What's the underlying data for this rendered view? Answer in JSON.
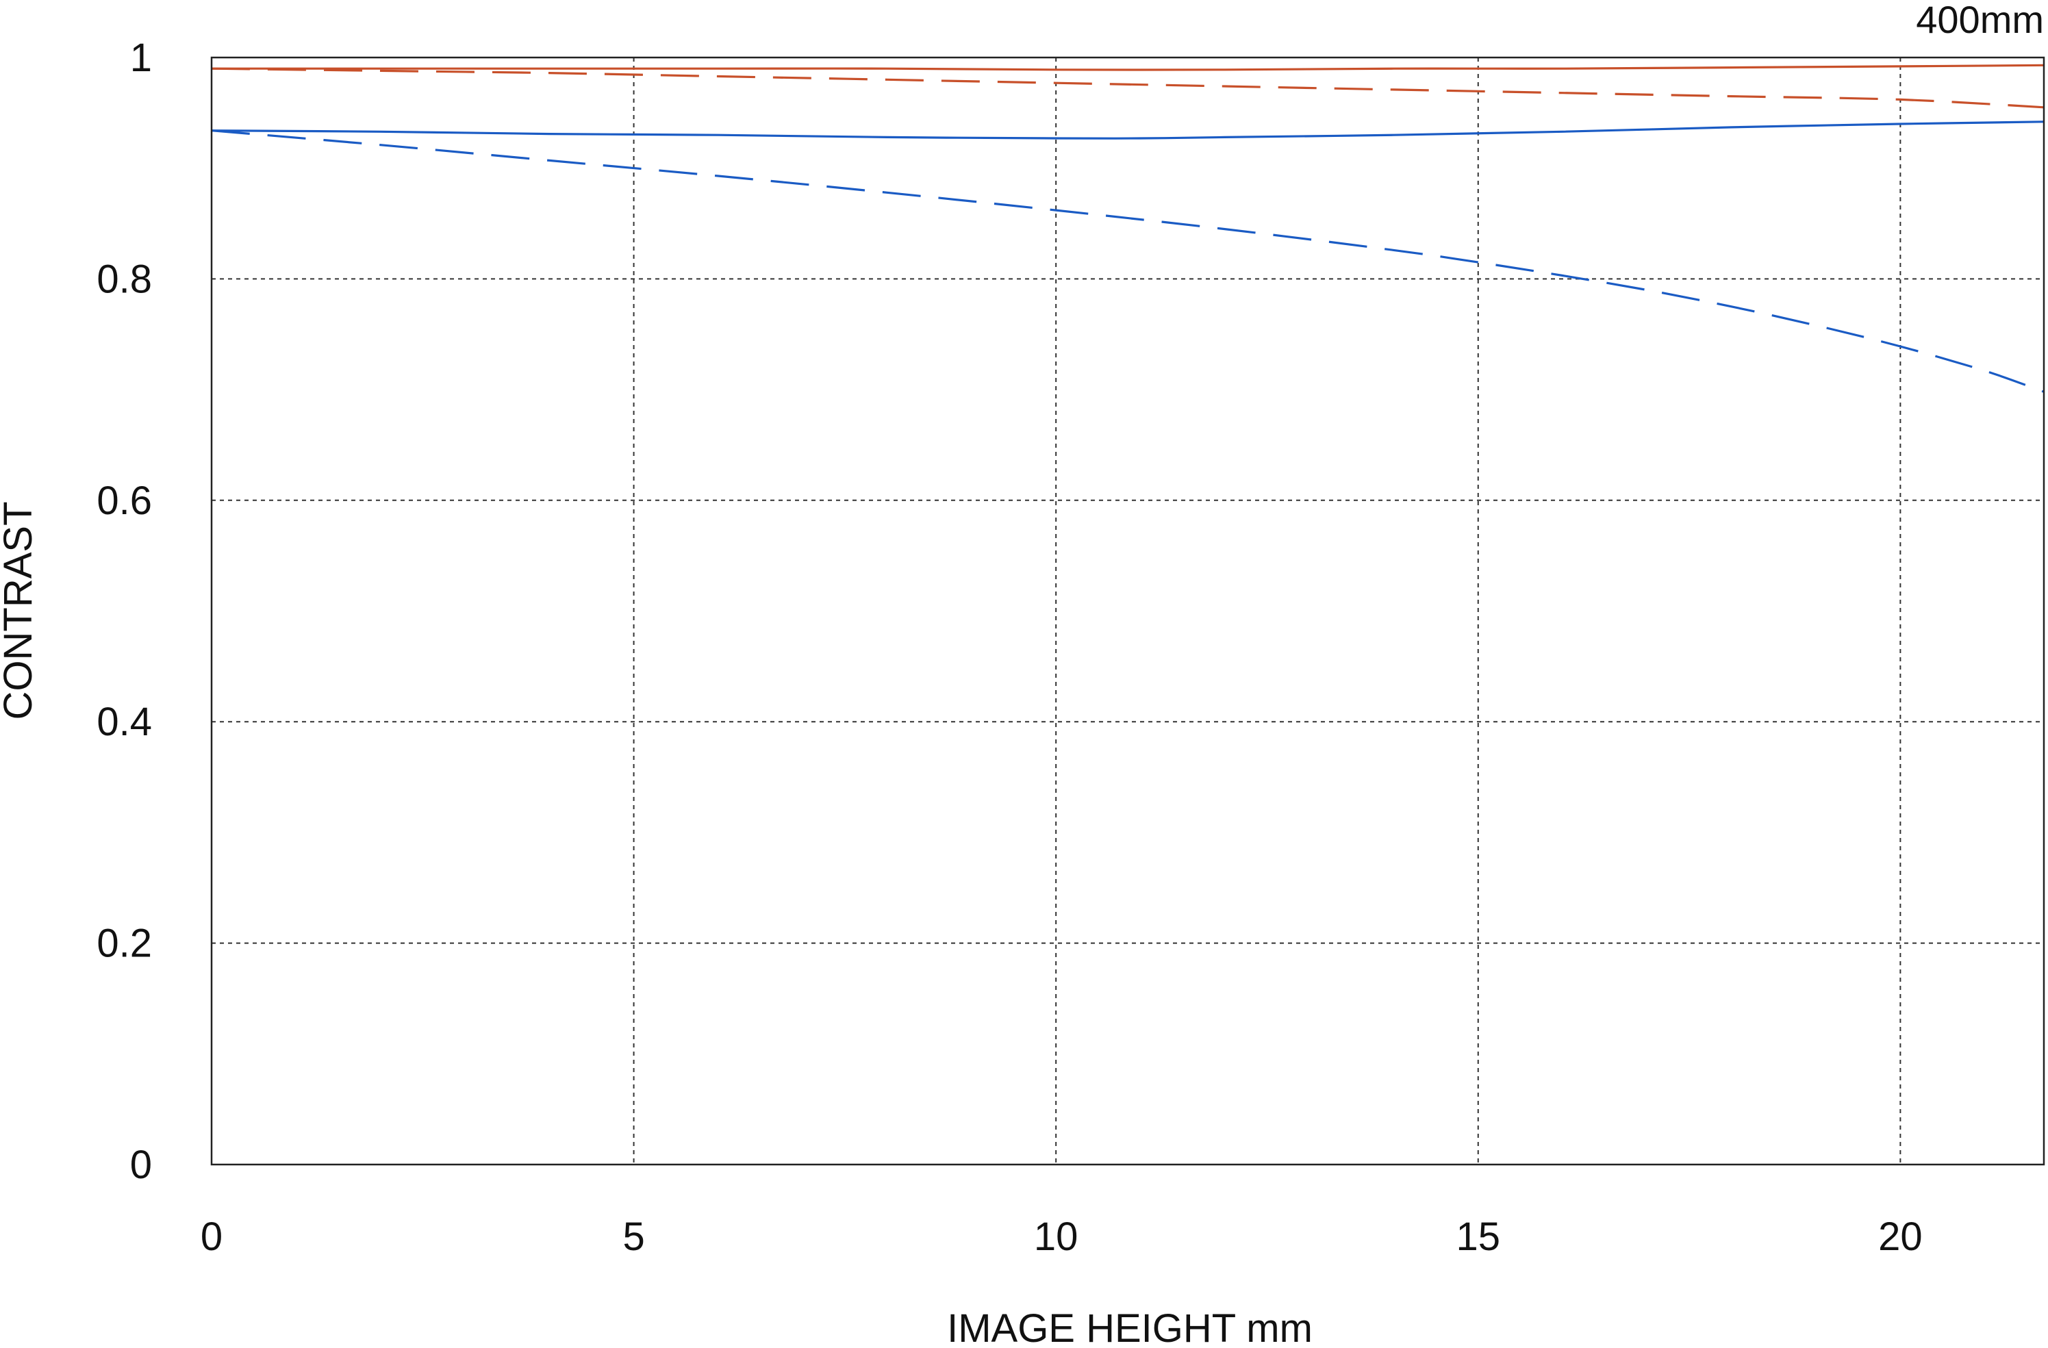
{
  "chart_data": {
    "type": "line",
    "title": "400mm",
    "xlabel": "IMAGE HEIGHT  mm",
    "ylabel": "CONTRAST",
    "xlim": [
      0,
      21.7
    ],
    "ylim": [
      0,
      1
    ],
    "x_ticks": [
      "0",
      "5",
      "10",
      "15",
      "20"
    ],
    "x_tick_values": [
      0,
      5,
      10,
      15,
      20
    ],
    "y_ticks": [
      "0",
      "0.2",
      "0.4",
      "0.6",
      "0.8",
      "1"
    ],
    "y_tick_values": [
      0,
      0.2,
      0.4,
      0.6,
      0.8,
      1
    ],
    "grid": true,
    "legend": "none",
    "series": [
      {
        "color": "#c8502a",
        "style": "solid",
        "x": [
          0,
          2,
          4,
          6,
          8,
          10,
          12,
          14,
          16,
          18,
          20,
          21.7
        ],
        "y": [
          0.99,
          0.99,
          0.99,
          0.99,
          0.99,
          0.989,
          0.989,
          0.99,
          0.99,
          0.991,
          0.992,
          0.993
        ]
      },
      {
        "color": "#c8502a",
        "style": "dashed",
        "x": [
          0,
          2,
          4,
          6,
          8,
          10,
          12,
          14,
          16,
          18,
          20,
          21.7
        ],
        "y": [
          0.99,
          0.988,
          0.986,
          0.983,
          0.98,
          0.977,
          0.974,
          0.971,
          0.968,
          0.965,
          0.962,
          0.955
        ]
      },
      {
        "color": "#1a5bc4",
        "style": "solid",
        "x": [
          0,
          2,
          4,
          6,
          8,
          10,
          11,
          12,
          14,
          16,
          18,
          20,
          21.7
        ],
        "y": [
          0.934,
          0.933,
          0.931,
          0.93,
          0.928,
          0.927,
          0.927,
          0.928,
          0.93,
          0.933,
          0.937,
          0.94,
          0.942
        ]
      },
      {
        "color": "#1a5bc4",
        "style": "dashed",
        "x": [
          0,
          2,
          4,
          6,
          8,
          10,
          12,
          14,
          15,
          16,
          17,
          18,
          19,
          20,
          21,
          21.7
        ],
        "y": [
          0.934,
          0.921,
          0.907,
          0.893,
          0.878,
          0.862,
          0.845,
          0.826,
          0.815,
          0.803,
          0.79,
          0.775,
          0.758,
          0.739,
          0.717,
          0.698
        ]
      }
    ]
  }
}
